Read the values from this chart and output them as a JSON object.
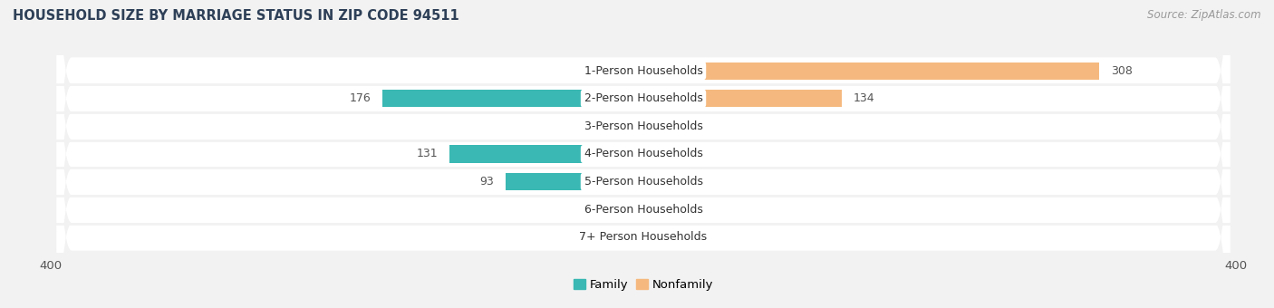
{
  "title": "HOUSEHOLD SIZE BY MARRIAGE STATUS IN ZIP CODE 94511",
  "source": "Source: ZipAtlas.com",
  "categories": [
    "7+ Person Households",
    "6-Person Households",
    "5-Person Households",
    "4-Person Households",
    "3-Person Households",
    "2-Person Households",
    "1-Person Households"
  ],
  "family_values": [
    0,
    0,
    93,
    131,
    0,
    176,
    0
  ],
  "nonfamily_values": [
    0,
    0,
    0,
    0,
    0,
    134,
    308
  ],
  "family_color": "#3ab8b3",
  "nonfamily_color": "#f5b97f",
  "axis_limit": 400,
  "min_bar_display": 12,
  "bar_height": 0.62,
  "bg_color": "#f2f2f2",
  "row_bg_light": "#f8f8f8",
  "row_bg_dark": "#eeeeee",
  "label_color": "#555555",
  "title_color": "#2e4057",
  "source_color": "#999999"
}
